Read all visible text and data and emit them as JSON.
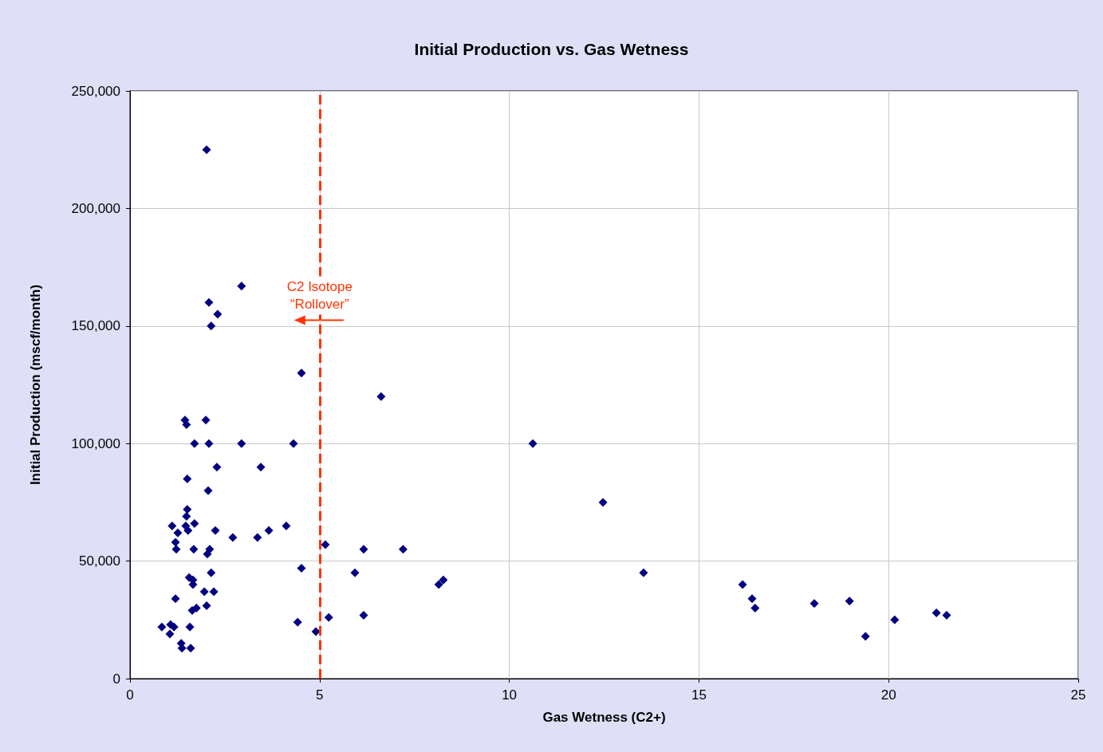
{
  "chart_data": {
    "type": "scatter",
    "title": "Initial Production vs. Gas Wetness",
    "xlabel": "Gas Wetness (C2+)",
    "ylabel": "Initial Production (mscf/month)",
    "series": [
      {
        "color": "#000080",
        "x": [
          2.02,
          2.94,
          2.08,
          2.31,
          2.14,
          4.52,
          6.62,
          1.45,
          2.0,
          1.49,
          1.7,
          2.08,
          2.94,
          4.31,
          10.62,
          2.29,
          3.45,
          1.51,
          2.06,
          12.47,
          1.51,
          1.49,
          1.11,
          1.47,
          1.7,
          1.26,
          1.53,
          2.25,
          2.71,
          3.36,
          3.66,
          4.12,
          1.2,
          1.22,
          1.68,
          2.1,
          2.04,
          5.15,
          6.16,
          7.2,
          4.52,
          5.93,
          2.14,
          13.54,
          1.56,
          1.66,
          1.66,
          8.14,
          8.26,
          16.15,
          1.96,
          2.21,
          1.2,
          16.4,
          1.75,
          1.64,
          2.02,
          16.48,
          18.04,
          18.97,
          5.24,
          6.16,
          4.42,
          4.9,
          0.84,
          1.07,
          1.16,
          1.58,
          1.05,
          1.35,
          1.37,
          1.6,
          19.39,
          20.16,
          21.26,
          21.53
        ],
        "values": [
          225000,
          167000,
          160000,
          155000,
          150000,
          130000,
          120000,
          110000,
          110000,
          108000,
          100000,
          100000,
          100000,
          100000,
          100000,
          90000,
          90000,
          85000,
          80000,
          75000,
          72000,
          69000,
          65000,
          65000,
          66000,
          62000,
          63000,
          63000,
          60000,
          60000,
          63000,
          65000,
          58000,
          55000,
          55000,
          55000,
          53000,
          57000,
          55000,
          55000,
          47000,
          45000,
          45000,
          45000,
          43000,
          42000,
          40000,
          40000,
          42000,
          40000,
          37000,
          37000,
          34000,
          34000,
          30000,
          29000,
          31000,
          30000,
          32000,
          33000,
          26000,
          27000,
          24000,
          20000,
          22000,
          23000,
          22000,
          22000,
          19000,
          15000,
          13000,
          13000,
          18000,
          25000,
          28000,
          27000
        ]
      }
    ],
    "xlim": [
      0,
      25
    ],
    "xticks": [
      0,
      5,
      10,
      15,
      20,
      25
    ],
    "ylim": [
      0,
      250000
    ],
    "yticks": [
      0,
      {
        "value": 50000,
        "label": "50,000"
      },
      {
        "value": 100000,
        "label": "100,000"
      },
      {
        "value": 150000,
        "label": "150,000"
      },
      {
        "value": 200000,
        "label": "200,000"
      },
      {
        "value": 250000,
        "label": "250,000"
      }
    ],
    "grid": true,
    "marker": "diamond",
    "ref_lines": [
      {
        "axis": "x",
        "value": 5,
        "color": "#ff3300",
        "line_style": "dashed"
      }
    ],
    "annotations": [
      {
        "text": "C2 Isotope\n“Rollover”",
        "x": 5,
        "y": 163000
      }
    ]
  }
}
